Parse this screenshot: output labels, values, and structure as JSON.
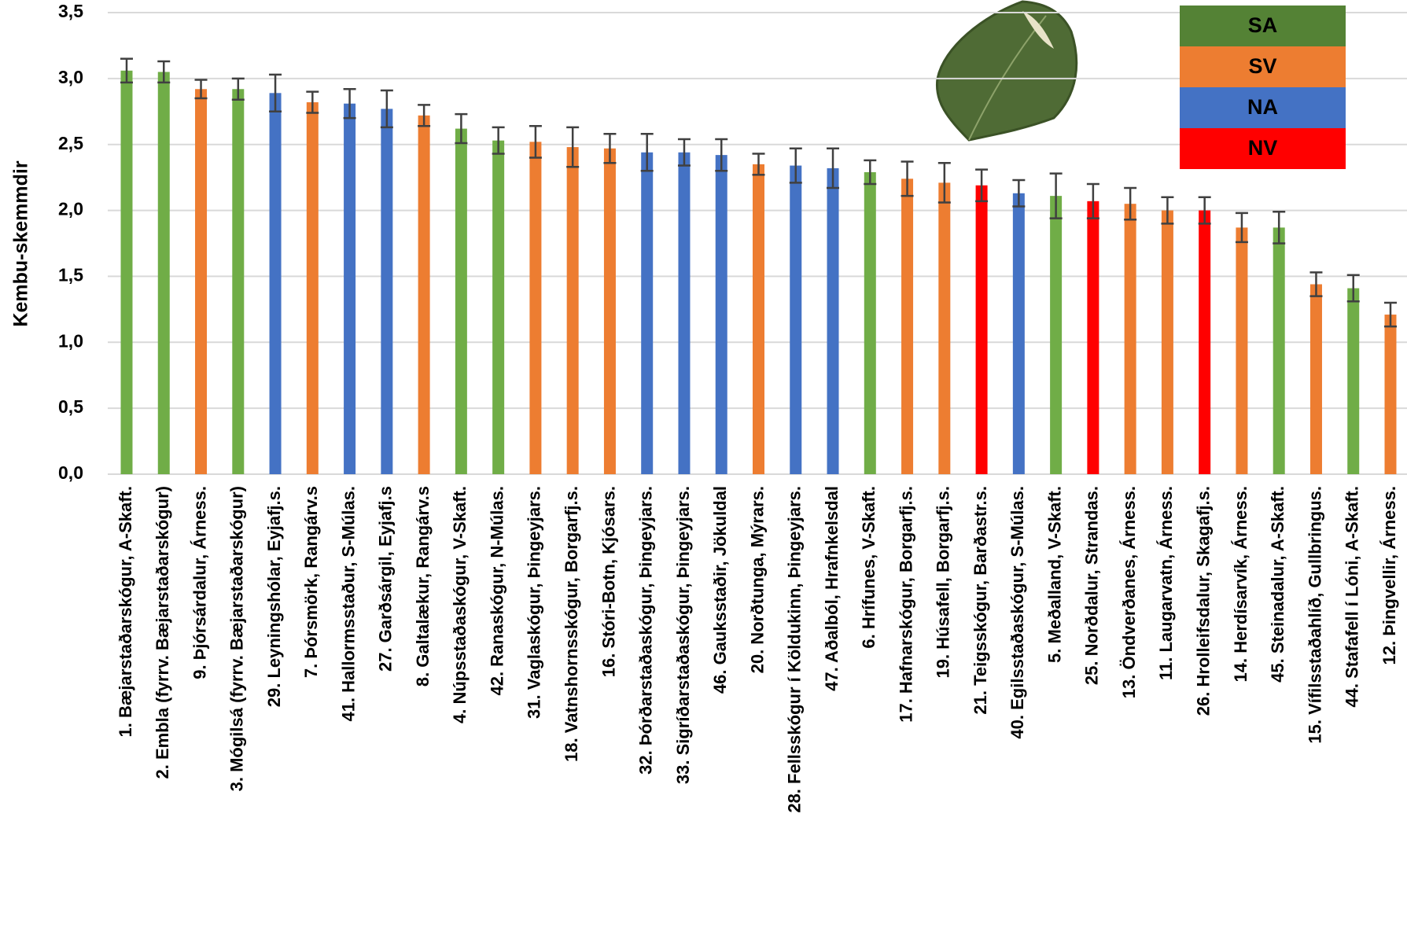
{
  "chart_data": {
    "type": "bar",
    "ylabel": "Kembu-skemmdir",
    "categories": [
      "1. Bæjarstaðarskógur, A-Skaft.",
      "2. Embla (fyrrv. Bæjarstaðarskógur)",
      "9. Þjórsárdalur, Árness.",
      "3. Mógilsá (fyrrv. Bæjarstaðarskógur)",
      "29. Leyningshólar, Eyjafj.s.",
      "7. Þórsmörk, Rangárv.s",
      "41. Hallormsstaður, S-Múlas.",
      "27. Garðsárgil, Eyjafj.s",
      "8. Galtalækur, Rangárv.s",
      "4. Núpsstaðaskógur, V-Skaft.",
      "42. Ranaskógur, N-Múlas.",
      "31. Vaglaskógur, Þingeyjars.",
      "18. Vatnshornsskógur, Borgarfj.s.",
      "16. Stóri-Botn, Kjósars.",
      "32. Þórðarstaðaskógur, Þingeyjars.",
      "33. Sigríðarstaðaskógur, Þingeyjars.",
      "46. Gauksstaðir, Jökuldal",
      "20. Norðtunga, Mýrars.",
      "28. Fellsskógur í Köldukinn, Þingeyjars.",
      "47. Aðalból, Hrafnkelsdal",
      "6. Hrífunes, V-Skaft.",
      "17. Hafnarskógur, Borgarfj.s.",
      "19. Húsafell, Borgarfj.s.",
      "21. Teigsskógur, Barðastr.s.",
      "40. Egilsstaðaskógur, S-Múlas.",
      "5. Meðalland, V-Skaft.",
      "25. Norðdalur, Strandas.",
      "13. Öndverðanes, Árness.",
      "11. Laugarvatn, Árness.",
      "26. Hrolleifsdalur, Skagafj.s.",
      "14. Herdísarvík, Árness.",
      "45. Steinadalur, A-Skaft.",
      "15. Vífilsstaðahlíð, Gullbringus.",
      "44. Stafafell í Lóni, A-Skaft.",
      "12. Þingvellir, Árness."
    ],
    "values": [
      3.06,
      3.05,
      2.92,
      2.92,
      2.89,
      2.82,
      2.81,
      2.77,
      2.72,
      2.62,
      2.53,
      2.52,
      2.48,
      2.47,
      2.44,
      2.44,
      2.42,
      2.35,
      2.34,
      2.32,
      2.29,
      2.24,
      2.21,
      2.19,
      2.13,
      2.11,
      2.07,
      2.05,
      2.0,
      2.0,
      1.87,
      1.87,
      1.44,
      1.41,
      1.21
    ],
    "errors": [
      0.09,
      0.08,
      0.07,
      0.08,
      0.14,
      0.08,
      0.11,
      0.14,
      0.08,
      0.11,
      0.1,
      0.12,
      0.15,
      0.11,
      0.14,
      0.1,
      0.12,
      0.08,
      0.13,
      0.15,
      0.09,
      0.13,
      0.15,
      0.12,
      0.1,
      0.17,
      0.13,
      0.12,
      0.1,
      0.1,
      0.11,
      0.12,
      0.09,
      0.1,
      0.09
    ],
    "colors": [
      "#70ad47",
      "#70ad47",
      "#ed7d31",
      "#70ad47",
      "#4472c4",
      "#ed7d31",
      "#4472c4",
      "#4472c4",
      "#ed7d31",
      "#70ad47",
      "#70ad47",
      "#ed7d31",
      "#ed7d31",
      "#ed7d31",
      "#4472c4",
      "#4472c4",
      "#4472c4",
      "#ed7d31",
      "#4472c4",
      "#4472c4",
      "#70ad47",
      "#ed7d31",
      "#ed7d31",
      "#ff0000",
      "#4472c4",
      "#70ad47",
      "#ff0000",
      "#ed7d31",
      "#ed7d31",
      "#ff0000",
      "#ed7d31",
      "#70ad47",
      "#ed7d31",
      "#70ad47",
      "#ed7d31"
    ],
    "ylim": [
      0,
      3.5
    ],
    "yticks": [
      {
        "value": 0,
        "label": "0,0"
      },
      {
        "value": 0.5,
        "label": "0,5"
      },
      {
        "value": 1,
        "label": "1,0"
      },
      {
        "value": 1.5,
        "label": "1,5"
      },
      {
        "value": 2,
        "label": "2,0"
      },
      {
        "value": 2.5,
        "label": "2,5"
      },
      {
        "value": 3,
        "label": "3,0"
      },
      {
        "value": 3.5,
        "label": "3,5"
      }
    ],
    "grid": true,
    "legend": [
      {
        "label": "SA",
        "color": "#548235"
      },
      {
        "label": "SV",
        "color": "#ed7d31"
      },
      {
        "label": "NA",
        "color": "#4472c4"
      },
      {
        "label": "NV",
        "color": "#ff0000"
      }
    ]
  }
}
